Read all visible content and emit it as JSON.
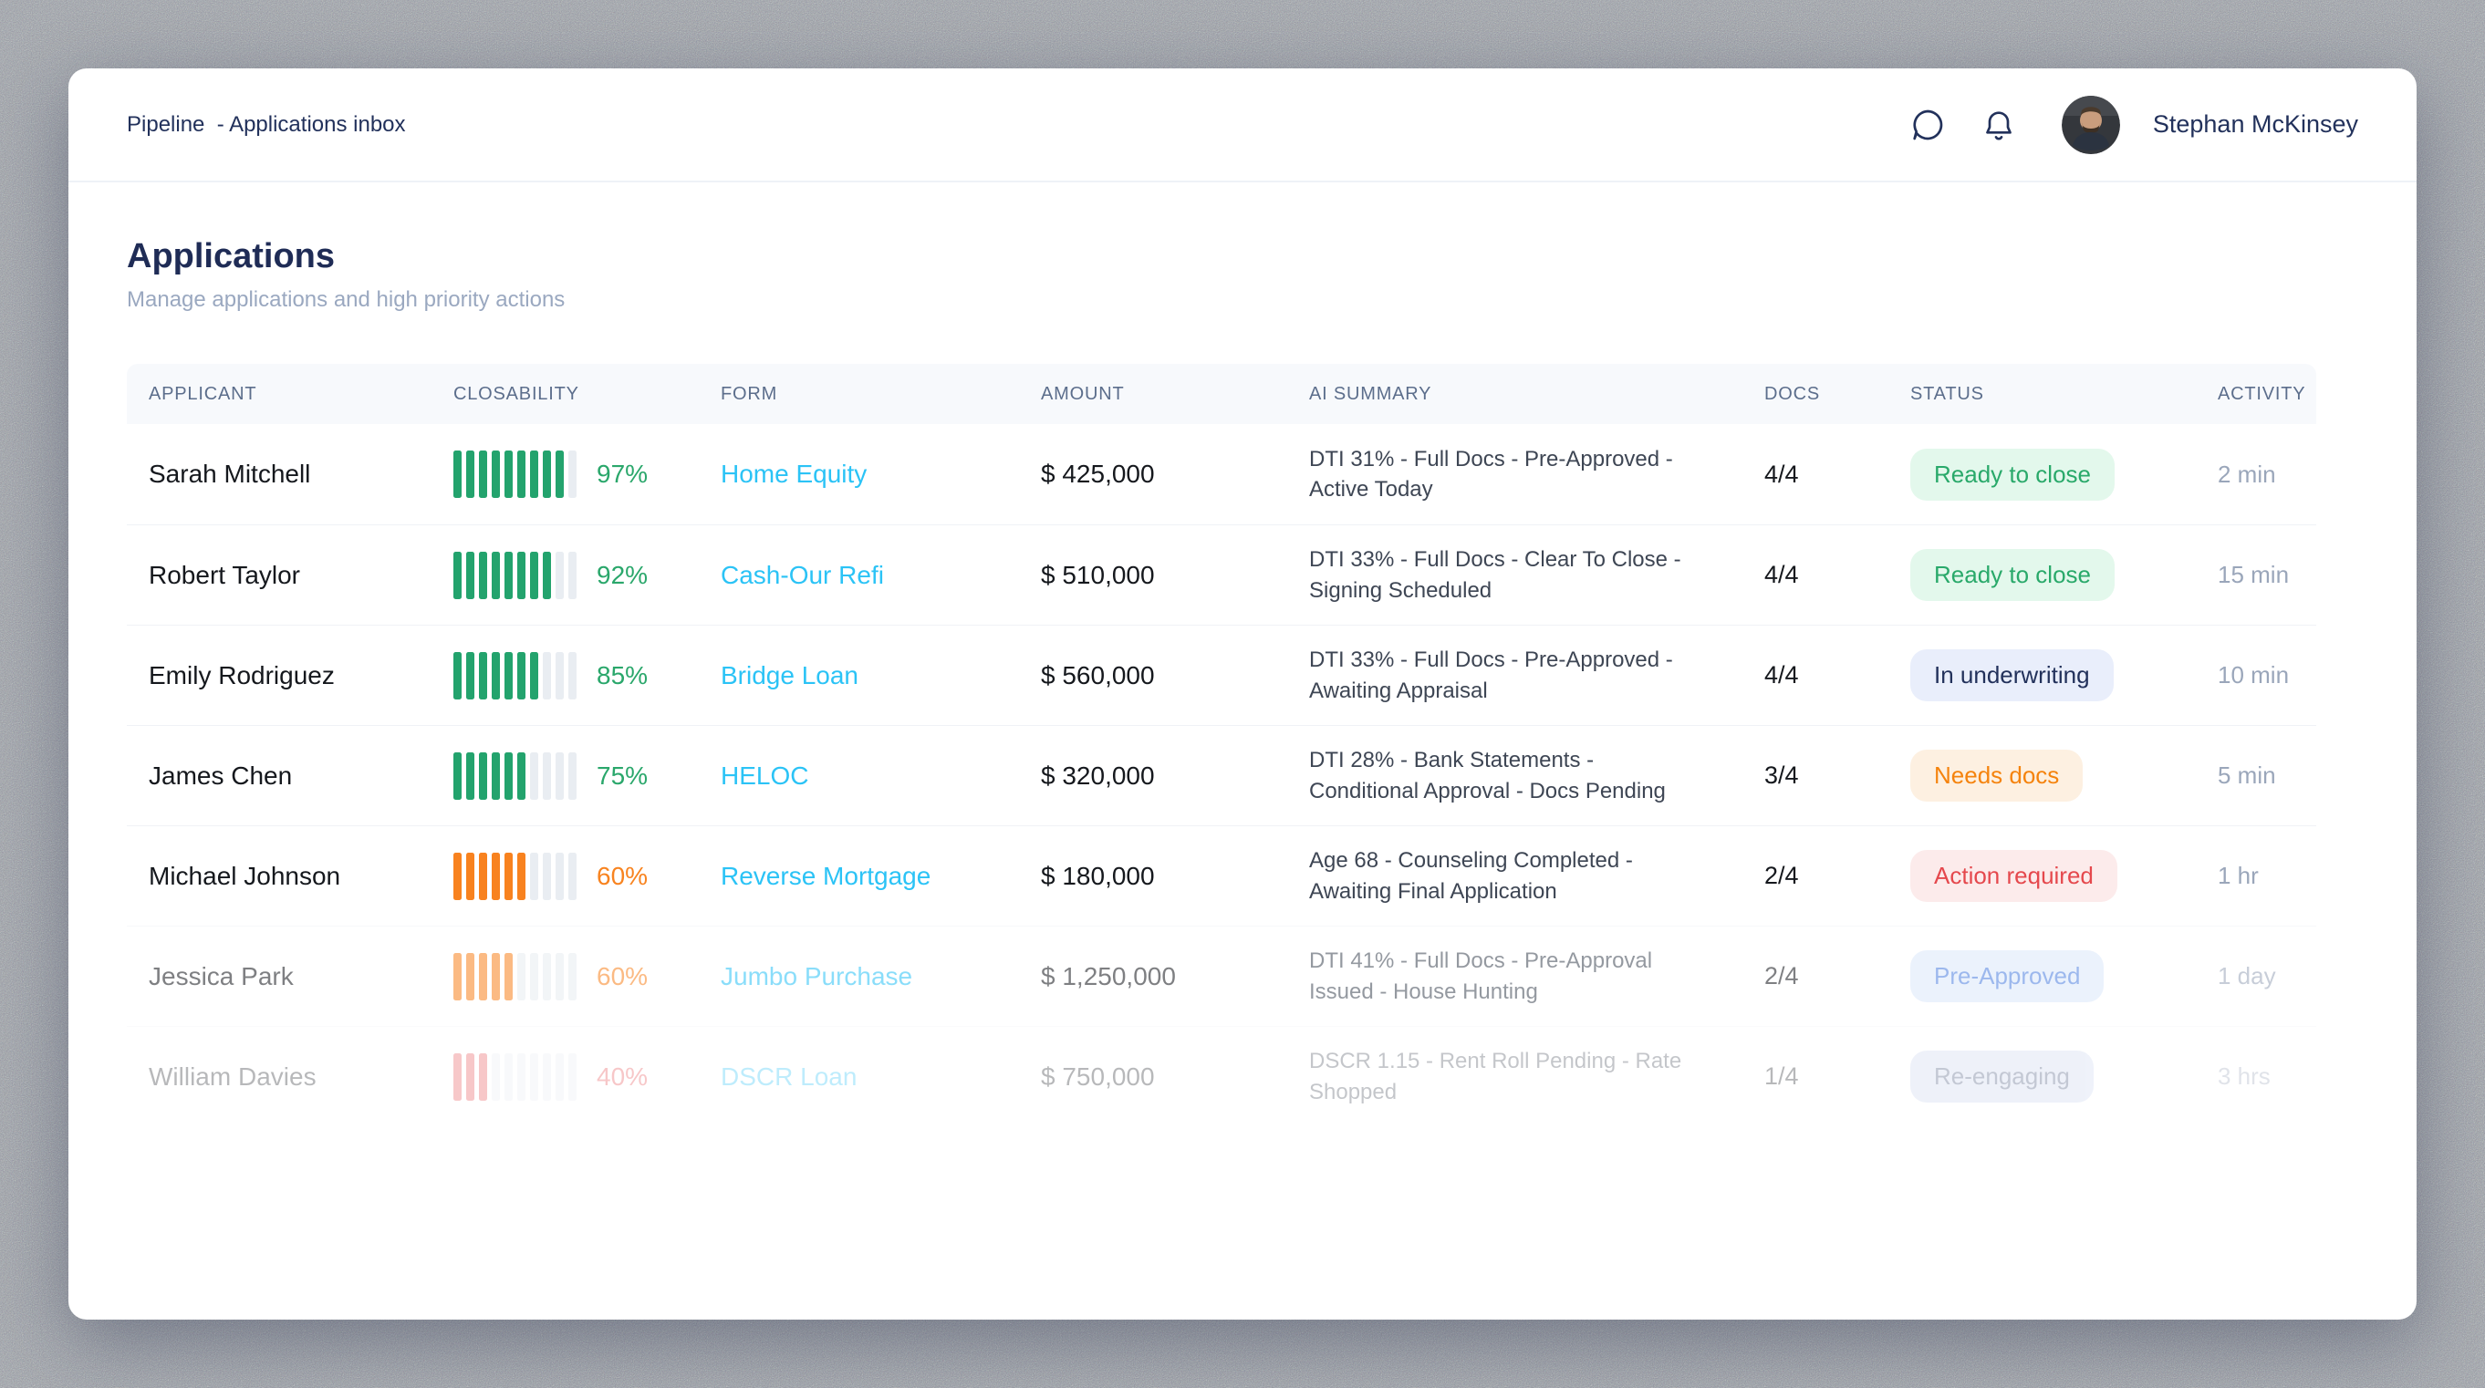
{
  "breadcrumb": "Pipeline  - Applications inbox",
  "user": {
    "name": "Stephan McKinsey"
  },
  "icons": {
    "chat": "chat-bubble-icon",
    "bell": "notification-bell-icon"
  },
  "page": {
    "title": "Applications",
    "subtitle": "Manage applications and high priority actions"
  },
  "colors": {
    "navy_text": "#22315b",
    "cyan_link": "#2bc3f6",
    "green": "#23a36d",
    "orange": "#f8821f",
    "red": "#e5484d",
    "bar_empty": "#e9edf2"
  },
  "table": {
    "columns": [
      "Applicant",
      "Closability",
      "Form",
      "Amount",
      "AI Summary",
      "Docs",
      "Status",
      "Activity"
    ],
    "rows": [
      {
        "applicant": "Sarah Mitchell",
        "closability_pct": "97%",
        "bars": {
          "filled": 9,
          "total": 10,
          "color": "#23a36d"
        },
        "pct_color": "#2aa76b",
        "form": "Home Equity",
        "amount": "$ 425,000",
        "ai_summary": "DTI 31% - Full Docs - Pre-Approved - Active Today",
        "docs": "4/4",
        "status": "Ready to close",
        "status_style": "green",
        "activity": "2 min",
        "opacity": 1
      },
      {
        "applicant": "Robert Taylor",
        "closability_pct": "92%",
        "bars": {
          "filled": 8,
          "total": 10,
          "color": "#23a36d"
        },
        "pct_color": "#2aa76b",
        "form": "Cash-Our Refi",
        "amount": "$ 510,000",
        "ai_summary": "DTI 33% - Full Docs - Clear To Close - Signing Scheduled",
        "docs": "4/4",
        "status": "Ready to close",
        "status_style": "green",
        "activity": "15 min",
        "opacity": 1
      },
      {
        "applicant": "Emily Rodriguez",
        "closability_pct": "85%",
        "bars": {
          "filled": 7,
          "total": 10,
          "color": "#23a36d"
        },
        "pct_color": "#2aa76b",
        "form": "Bridge Loan",
        "amount": "$ 560,000",
        "ai_summary": "DTI 33% - Full Docs - Pre-Approved - Awaiting Appraisal",
        "docs": "4/4",
        "status": "In underwriting",
        "status_style": "navy",
        "activity": "10 min",
        "opacity": 1
      },
      {
        "applicant": "James Chen",
        "closability_pct": "75%",
        "bars": {
          "filled": 6,
          "total": 10,
          "color": "#23a36d"
        },
        "pct_color": "#2aa76b",
        "form": "HELOC",
        "amount": "$ 320,000",
        "ai_summary": "DTI 28% - Bank Statements - Conditional Approval - Docs Pending",
        "docs": "3/4",
        "status": "Needs docs",
        "status_style": "orange",
        "activity": "5 min",
        "opacity": 1
      },
      {
        "applicant": "Michael Johnson",
        "closability_pct": "60%",
        "bars": {
          "filled": 6,
          "total": 10,
          "color": "#f8821f"
        },
        "pct_color": "#f8831f",
        "form": "Reverse Mortgage",
        "amount": "$ 180,000",
        "ai_summary": "Age 68 - Counseling Completed - Awaiting Final Application",
        "docs": "2/4",
        "status": "Action required",
        "status_style": "red",
        "activity": "1 hr",
        "opacity": 1
      },
      {
        "applicant": "Jessica Park",
        "closability_pct": "60%",
        "bars": {
          "filled": 5,
          "total": 10,
          "color": "#f8821f"
        },
        "pct_color": "#f8831f",
        "form": "Jumbo Purchase",
        "amount": "$ 1,250,000",
        "ai_summary": "DTI 41% - Full Docs - Pre-Approval Issued - House Hunting",
        "docs": "2/4",
        "status": "Pre-Approved",
        "status_style": "blue",
        "activity": "1 day",
        "opacity": 0.55
      },
      {
        "applicant": "William Davies",
        "closability_pct": "40%",
        "bars": {
          "filled": 3,
          "total": 10,
          "color": "#e5484d"
        },
        "pct_color": "#e5484d",
        "form": "DSCR Loan",
        "amount": "$ 750,000",
        "ai_summary": "DSCR 1.15 - Rent Roll Pending - Rate Shopped",
        "docs": "1/4",
        "status": "Re-engaging",
        "status_style": "muted",
        "activity": "3 hrs",
        "opacity": 0.3
      }
    ]
  }
}
